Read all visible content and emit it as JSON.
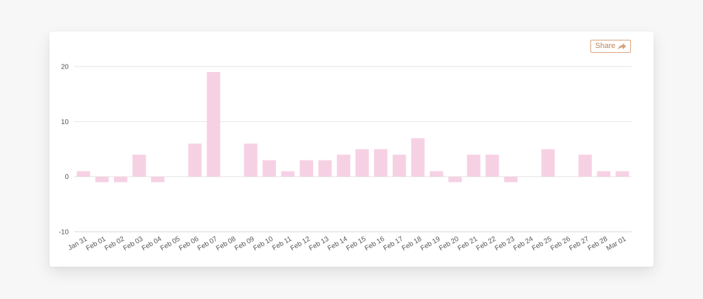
{
  "share": {
    "label": "Share",
    "icon": "share-arrow-icon"
  },
  "colors": {
    "bar": "#f6d1e4",
    "grid": "#e6e6e6",
    "axis": "#d4d4d4",
    "accent": "#d8a07a"
  },
  "chart_data": {
    "type": "bar",
    "title": "",
    "xlabel": "",
    "ylabel": "",
    "ylim": [
      -10,
      20
    ],
    "yticks": [
      -10,
      0,
      10,
      20
    ],
    "grid": true,
    "categories": [
      "Jan 31",
      "Feb 01",
      "Feb 02",
      "Feb 03",
      "Feb 04",
      "Feb 05",
      "Feb 06",
      "Feb 07",
      "Feb 08",
      "Feb 09",
      "Feb 10",
      "Feb 11",
      "Feb 12",
      "Feb 13",
      "Feb 14",
      "Feb 15",
      "Feb 16",
      "Feb 17",
      "Feb 18",
      "Feb 19",
      "Feb 20",
      "Feb 21",
      "Feb 22",
      "Feb 23",
      "Feb 24",
      "Feb 25",
      "Feb 26",
      "Feb 27",
      "Feb 28",
      "Mar 01"
    ],
    "values": [
      1,
      -1,
      -1,
      4,
      -1,
      0,
      6,
      19,
      0,
      6,
      3,
      1,
      3,
      3,
      4,
      5,
      5,
      4,
      7,
      1,
      -1,
      4,
      4,
      -1,
      0,
      5,
      0,
      4,
      1,
      1
    ]
  }
}
